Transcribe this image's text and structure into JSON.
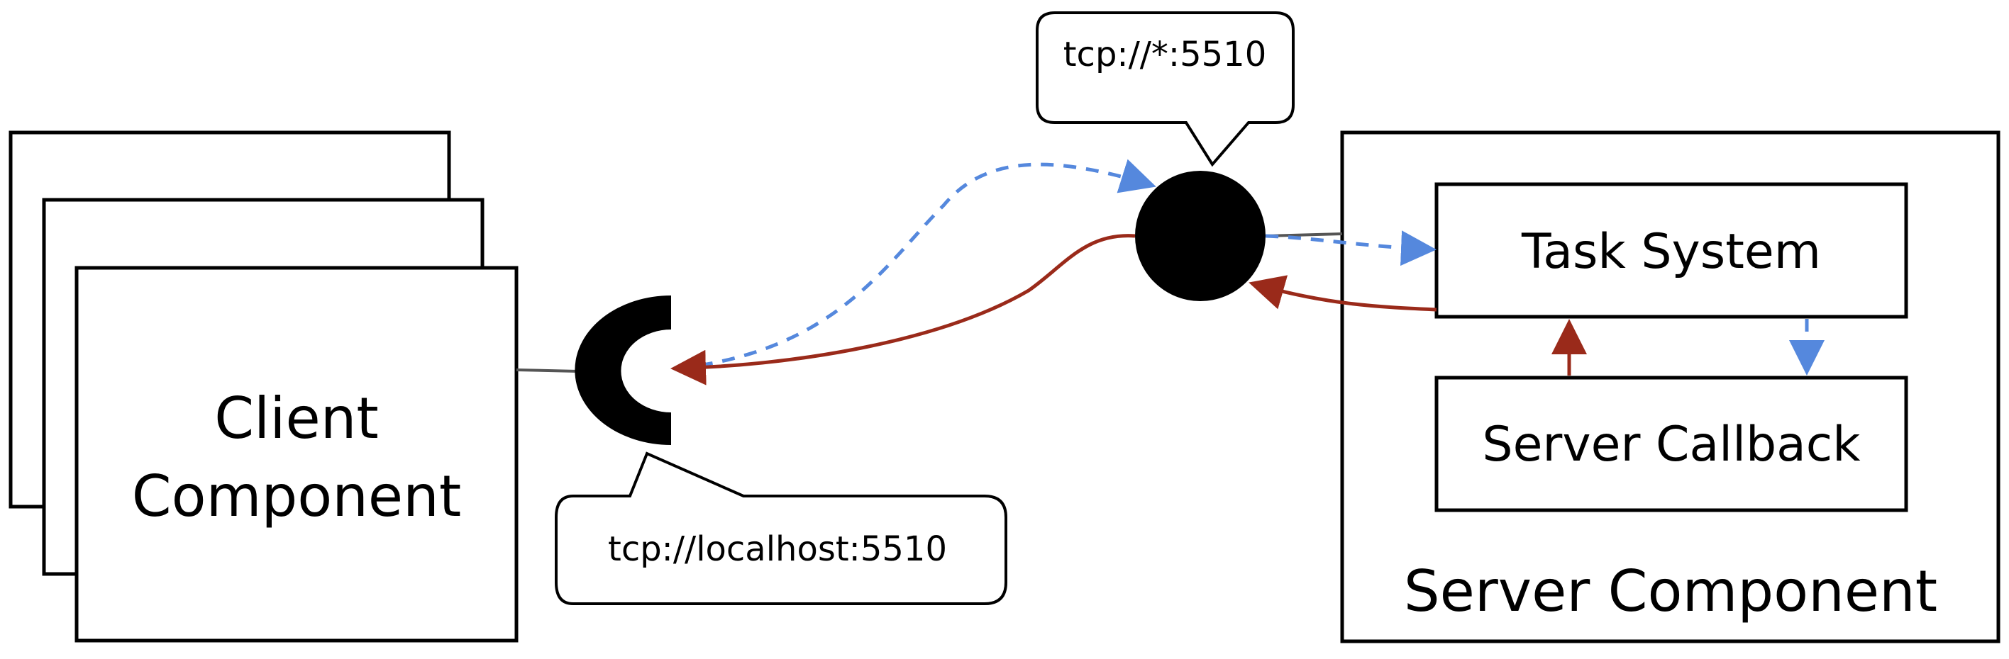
{
  "client": {
    "label_line1": "Client",
    "label_line2": "Component"
  },
  "client_socket": {
    "address": "tcp://localhost:5510"
  },
  "server_socket": {
    "address": "tcp://*:5510"
  },
  "server": {
    "label": "Server Component",
    "task_system": "Task System",
    "server_callback": "Server Callback"
  },
  "colors": {
    "request": "#5588dd",
    "response": "#9a2a1a",
    "line": "#000000",
    "wire": "#555555"
  }
}
